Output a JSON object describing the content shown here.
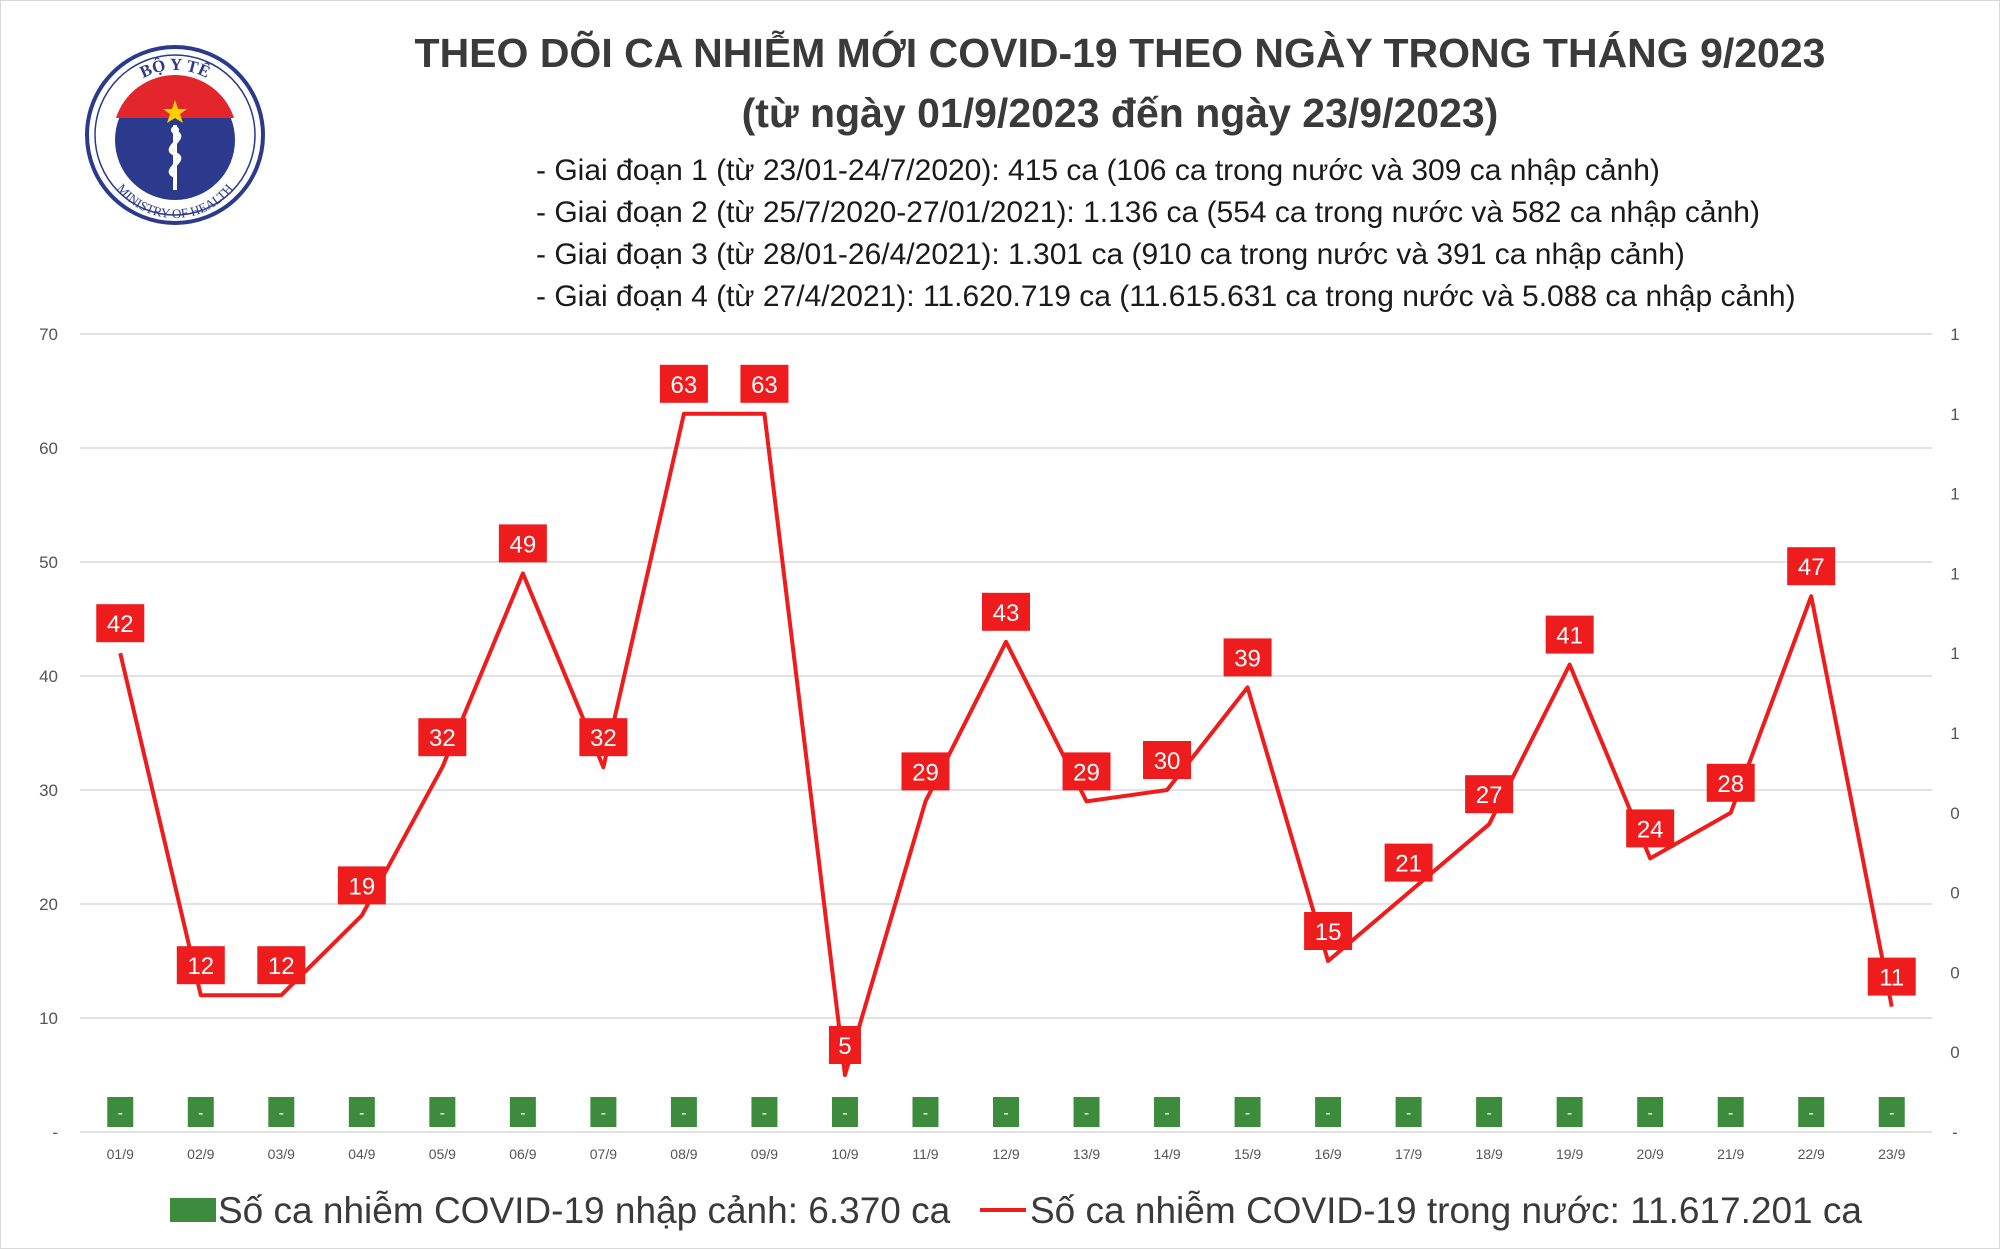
{
  "logo": {
    "text_top": "BỘ Y TẾ",
    "text_bottom": "MINISTRY OF HEALTH"
  },
  "title": {
    "line1": "THEO DÕI CA NHIỄM MỚI COVID-19 THEO NGÀY TRONG THÁNG 9/2023",
    "line2": "(từ ngày 01/9/2023 đến ngày 23/9/2023)"
  },
  "stages": [
    "- Giai đoạn 1 (từ 23/01-24/7/2020): 415 ca (106 ca trong nước và 309 ca nhập cảnh)",
    "- Giai đoạn 2 (từ 25/7/2020-27/01/2021): 1.136 ca (554 ca trong nước và 582 ca nhập cảnh)",
    "- Giai đoạn 3 (từ 28/01-26/4/2021): 1.301 ca (910 ca trong nước và 391 ca nhập cảnh)",
    "- Giai đoạn 4 (từ 27/4/2021): 11.620.719 ca (11.615.631 ca trong nước và 5.088 ca nhập cảnh)"
  ],
  "legend": {
    "imported": "Số ca nhiễm COVID-19 nhập cảnh: 6.370 ca",
    "domestic": "Số ca nhiễm COVID-19 trong nước: 11.617.201 ca"
  },
  "colors": {
    "domestic": "#ee1c1c",
    "imported": "#3d8b3d",
    "grid": "#d9d9d9",
    "text": "#3a3a3a"
  },
  "chart_data": {
    "type": "line",
    "categories": [
      "01/9",
      "02/9",
      "03/9",
      "04/9",
      "05/9",
      "06/9",
      "07/9",
      "08/9",
      "09/9",
      "10/9",
      "11/9",
      "12/9",
      "13/9",
      "14/9",
      "15/9",
      "16/9",
      "17/9",
      "18/9",
      "19/9",
      "20/9",
      "21/9",
      "22/9",
      "23/9"
    ],
    "series": [
      {
        "name": "Số ca nhiễm COVID-19 trong nước: 11.617.201 ca",
        "kind": "line",
        "axis": "left",
        "values": [
          42,
          12,
          12,
          19,
          32,
          49,
          32,
          63,
          63,
          5,
          29,
          43,
          29,
          30,
          39,
          15,
          21,
          27,
          41,
          24,
          28,
          47,
          11
        ],
        "labels": [
          "42",
          "12",
          "12",
          "19",
          "32",
          "49",
          "32",
          "63",
          "63",
          "5",
          "29",
          "43",
          "29",
          "30",
          "39",
          "15",
          "21",
          "27",
          "41",
          "24",
          "28",
          "47",
          "11"
        ]
      },
      {
        "name": "Số ca nhiễm COVID-19 nhập cảnh: 6.370 ca",
        "kind": "bar",
        "axis": "right",
        "values": [
          0,
          0,
          0,
          0,
          0,
          0,
          0,
          0,
          0,
          0,
          0,
          0,
          0,
          0,
          0,
          0,
          0,
          0,
          0,
          0,
          0,
          0,
          0
        ],
        "labels": [
          "-",
          "-",
          "-",
          "-",
          "-",
          "-",
          "-",
          "-",
          "-",
          "-",
          "-",
          "-",
          "-",
          "-",
          "-",
          "-",
          "-",
          "-",
          "-",
          "-",
          "-",
          "-",
          "-"
        ]
      }
    ],
    "y_left": {
      "ticks": [
        "-",
        "10",
        "20",
        "30",
        "40",
        "50",
        "60",
        "70"
      ],
      "ylim": [
        0,
        70
      ]
    },
    "y_right": {
      "ticks": [
        "-",
        "0",
        "0",
        "0",
        "0",
        "1",
        "1",
        "1",
        "1",
        "1",
        "1"
      ]
    },
    "grid": true,
    "legend_position": "bottom"
  }
}
